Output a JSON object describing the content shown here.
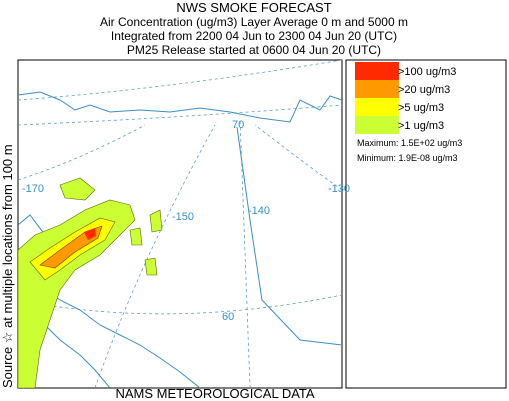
{
  "title": "NWS SMOKE FORECAST",
  "subtitle_lines": [
    "Air Concentration (ug/m3) Layer Average    0 m and  5000 m",
    "Integrated from 2200 04 Jun to 2300 04 Jun 20 (UTC)",
    "PM25 Release started at 0600 04 Jun 20 (UTC)"
  ],
  "side_label": "Source ☆  at multiple locations   from   100 m",
  "footer": "NAMS METEOROLOGICAL DATA",
  "legend": {
    "items": [
      {
        "label": ">100 ug/m3",
        "color": "#ff2a00"
      },
      {
        "label": ">20 ug/m3",
        "color": "#ff9900"
      },
      {
        "label": ">5 ug/m3",
        "color": "#ffff00"
      },
      {
        "label": ">1 ug/m3",
        "color": "#ccff33"
      }
    ],
    "maximum": "Maximum: 1.5E+02 ug/m3",
    "minimum": "Minimum: 1.9E-08 ug/m3"
  },
  "map_labels": [
    "-170",
    "-150",
    "-140",
    "-130",
    "70",
    "60"
  ]
}
